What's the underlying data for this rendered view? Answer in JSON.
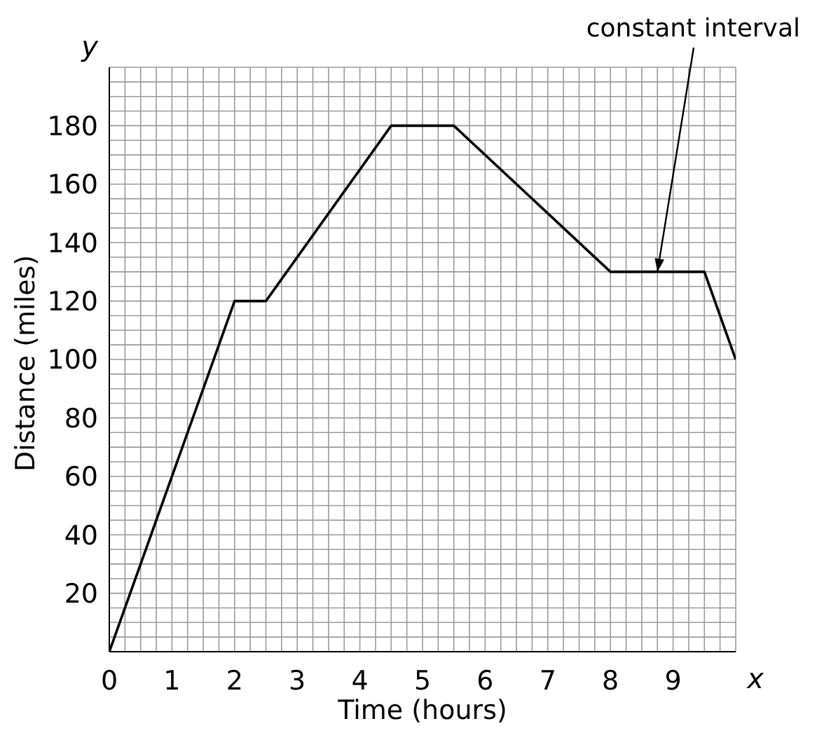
{
  "chart_data": {
    "type": "line",
    "xlabel": "Time (hours)",
    "ylabel": "Distance (miles)",
    "x": [
      0,
      2,
      2.5,
      4.5,
      5.5,
      8,
      9.5,
      10
    ],
    "series": [
      {
        "color": "#000000",
        "values": [
          0,
          120,
          120,
          180,
          180,
          130,
          130,
          100
        ]
      }
    ],
    "xlim": [
      0,
      10
    ],
    "ylim": [
      0,
      200
    ],
    "xticks": [
      0,
      {
        "value": 0.25,
        "label": null
      },
      {
        "value": 0.5,
        "label": null
      },
      {
        "value": 0.75,
        "label": null
      },
      1,
      {
        "value": 1.25,
        "label": null
      },
      {
        "value": 1.5,
        "label": null
      },
      {
        "value": 1.75,
        "label": null
      },
      2,
      {
        "value": 2.25,
        "label": null
      },
      {
        "value": 2.5,
        "label": null
      },
      {
        "value": 2.75,
        "label": null
      },
      3,
      {
        "value": 3.25,
        "label": null
      },
      {
        "value": 3.5,
        "label": null
      },
      {
        "value": 3.75,
        "label": null
      },
      4,
      {
        "value": 4.25,
        "label": null
      },
      {
        "value": 4.5,
        "label": null
      },
      {
        "value": 4.75,
        "label": null
      },
      5,
      {
        "value": 5.25,
        "label": null
      },
      {
        "value": 5.5,
        "label": null
      },
      {
        "value": 5.75,
        "label": null
      },
      6,
      {
        "value": 6.25,
        "label": null
      },
      {
        "value": 6.5,
        "label": null
      },
      {
        "value": 6.75,
        "label": null
      },
      7,
      {
        "value": 7.25,
        "label": null
      },
      {
        "value": 7.5,
        "label": null
      },
      {
        "value": 7.75,
        "label": null
      },
      8,
      {
        "value": 8.25,
        "label": null
      },
      {
        "value": 8.5,
        "label": null
      },
      {
        "value": 8.75,
        "label": null
      },
      9,
      {
        "value": 9.25,
        "label": null
      },
      {
        "value": 9.5,
        "label": null
      },
      {
        "value": 9.75,
        "label": null
      },
      {
        "value": 10,
        "label": null
      }
    ],
    "yticks": [
      {
        "value": 0,
        "label": null
      },
      {
        "value": 5,
        "label": null
      },
      {
        "value": 10,
        "label": null
      },
      {
        "value": 15,
        "label": null
      },
      20,
      {
        "value": 25,
        "label": null
      },
      {
        "value": 30,
        "label": null
      },
      {
        "value": 35,
        "label": null
      },
      40,
      {
        "value": 45,
        "label": null
      },
      {
        "value": 50,
        "label": null
      },
      {
        "value": 55,
        "label": null
      },
      60,
      {
        "value": 65,
        "label": null
      },
      {
        "value": 70,
        "label": null
      },
      {
        "value": 75,
        "label": null
      },
      80,
      {
        "value": 85,
        "label": null
      },
      {
        "value": 90,
        "label": null
      },
      {
        "value": 95,
        "label": null
      },
      100,
      {
        "value": 105,
        "label": null
      },
      {
        "value": 110,
        "label": null
      },
      {
        "value": 115,
        "label": null
      },
      120,
      {
        "value": 125,
        "label": null
      },
      {
        "value": 130,
        "label": null
      },
      {
        "value": 135,
        "label": null
      },
      140,
      {
        "value": 145,
        "label": null
      },
      {
        "value": 150,
        "label": null
      },
      {
        "value": 155,
        "label": null
      },
      160,
      {
        "value": 165,
        "label": null
      },
      {
        "value": 170,
        "label": null
      },
      {
        "value": 175,
        "label": null
      },
      180,
      {
        "value": 185,
        "label": null
      },
      {
        "value": 190,
        "label": null
      },
      {
        "value": 195,
        "label": null
      },
      {
        "value": 200,
        "label": null
      }
    ],
    "grid": true,
    "marker": "none",
    "line_style": "solid",
    "annotations": [
      {
        "text": "constant interval",
        "x": 8.75,
        "y": 130
      },
      "x",
      "y"
    ]
  }
}
